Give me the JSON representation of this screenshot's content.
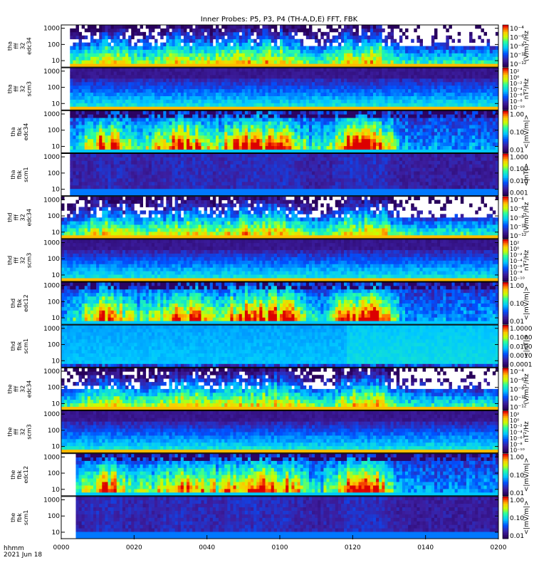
{
  "chart_data": {
    "type": "heatmap",
    "title": "Inner Probes: P5, P3, P4 (TH-A,D,E) FFT, FBK",
    "footer": {
      "units": "hhmm",
      "date": "2021 Jun 18"
    },
    "x_ticks": [
      "0000",
      "0020",
      "0040",
      "0100",
      "0120",
      "0140",
      "0200"
    ],
    "xlim": [
      "00:00",
      "02:00"
    ],
    "y_scale": "log",
    "y_ticks": [
      "10",
      "100",
      "1000"
    ],
    "panels": [
      {
        "label_lines": [
          "tha",
          "fff",
          "32",
          "edc34"
        ],
        "ylim": [
          4,
          1600
        ],
        "cb_ticks": [
          "10⁻⁴",
          "10⁻⁶",
          "10⁻⁸",
          "10⁻¹⁰",
          "10⁻¹²"
        ],
        "cb_label": "(V/m)²/Hz",
        "kind": "e_fff",
        "start": 0.02
      },
      {
        "label_lines": [
          "tha",
          "fff",
          "32",
          "scm3"
        ],
        "ylim": [
          4,
          1600
        ],
        "cb_ticks": [
          "10²",
          "10⁰",
          "10⁻²",
          "10⁻⁴",
          "10⁻⁶",
          "10⁻⁸",
          "10⁻¹⁰"
        ],
        "cb_label": "nT²/Hz",
        "kind": "b_fff",
        "start": 0.02
      },
      {
        "label_lines": [
          "tha",
          "fbk",
          "edc34"
        ],
        "ylim": [
          4,
          1600
        ],
        "cb_ticks": [
          "1.00",
          "0.10",
          "0.01"
        ],
        "cb_label": "<|mV/m|>",
        "kind": "e_fbk",
        "start": 0.02
      },
      {
        "label_lines": [
          "tha",
          "fbk",
          "scm1"
        ],
        "ylim": [
          4,
          1600
        ],
        "cb_ticks": [
          "1.000",
          "0.100",
          "0.010",
          "0.001"
        ],
        "cb_label": "<|nT|>",
        "kind": "b_fbk",
        "start": 0.02
      },
      {
        "label_lines": [
          "thd",
          "fff",
          "32",
          "edc34"
        ],
        "ylim": [
          4,
          1600
        ],
        "cb_ticks": [
          "10⁻⁴",
          "10⁻⁶",
          "10⁻⁸",
          "10⁻¹⁰",
          "10⁻¹²"
        ],
        "cb_label": "(V/m)²/Hz",
        "kind": "e_fff",
        "start": 0.0
      },
      {
        "label_lines": [
          "thd",
          "fff",
          "32",
          "scm3"
        ],
        "ylim": [
          4,
          1600
        ],
        "cb_ticks": [
          "10²",
          "10⁰",
          "10⁻²",
          "10⁻⁴",
          "10⁻⁶",
          "10⁻⁸",
          "10⁻¹⁰"
        ],
        "cb_label": "nT²/Hz",
        "kind": "b_fff",
        "start": 0.0
      },
      {
        "label_lines": [
          "thd",
          "fbk",
          "edc12"
        ],
        "ylim": [
          4,
          1600
        ],
        "cb_ticks": [
          "1.00",
          "0.10",
          "0.01"
        ],
        "cb_label": "<|mV/m|>",
        "kind": "e_fbk",
        "start": 0.0
      },
      {
        "label_lines": [
          "thd",
          "fbk",
          "scm1"
        ],
        "ylim": [
          4,
          1600
        ],
        "cb_ticks": [
          "1.0000",
          "0.1000",
          "0.0100",
          "0.0010",
          "0.0001"
        ],
        "cb_label": "<|nT|>",
        "kind": "b_fbk_d",
        "start": 0.0
      },
      {
        "label_lines": [
          "the",
          "fff",
          "32",
          "edc34"
        ],
        "ylim": [
          4,
          1600
        ],
        "cb_ticks": [
          "10⁻⁴",
          "10⁻⁶",
          "10⁻⁸",
          "10⁻¹⁰",
          "10⁻¹²"
        ],
        "cb_label": "(V/m)²/Hz",
        "kind": "e_fff",
        "start": 0.0
      },
      {
        "label_lines": [
          "the",
          "fff",
          "32",
          "scm3"
        ],
        "ylim": [
          4,
          1600
        ],
        "cb_ticks": [
          "10²",
          "10⁰",
          "10⁻²",
          "10⁻⁴",
          "10⁻⁶",
          "10⁻⁸",
          "10⁻¹⁰"
        ],
        "cb_label": "nT²/Hz",
        "kind": "b_fff",
        "start": 0.0
      },
      {
        "label_lines": [
          "the",
          "fbk",
          "edc12"
        ],
        "ylim": [
          4,
          1600
        ],
        "cb_ticks": [
          "1.00",
          "0.10",
          "0.01"
        ],
        "cb_label": "<|mV/m|>",
        "kind": "e_fbk",
        "start": 0.03
      },
      {
        "label_lines": [
          "the",
          "fbk",
          "scm1"
        ],
        "ylim": [
          4,
          1600
        ],
        "cb_ticks": [
          "1.00",
          "0.10",
          "0.01"
        ],
        "cb_label": "<|mV/m|>",
        "kind": "b_fbk",
        "start": 0.03
      }
    ]
  },
  "colors": {
    "background": "#ffffff",
    "axis": "#000000",
    "low": "#3a0a5a",
    "mid": "#00c8ff",
    "high": "#ff0000"
  }
}
